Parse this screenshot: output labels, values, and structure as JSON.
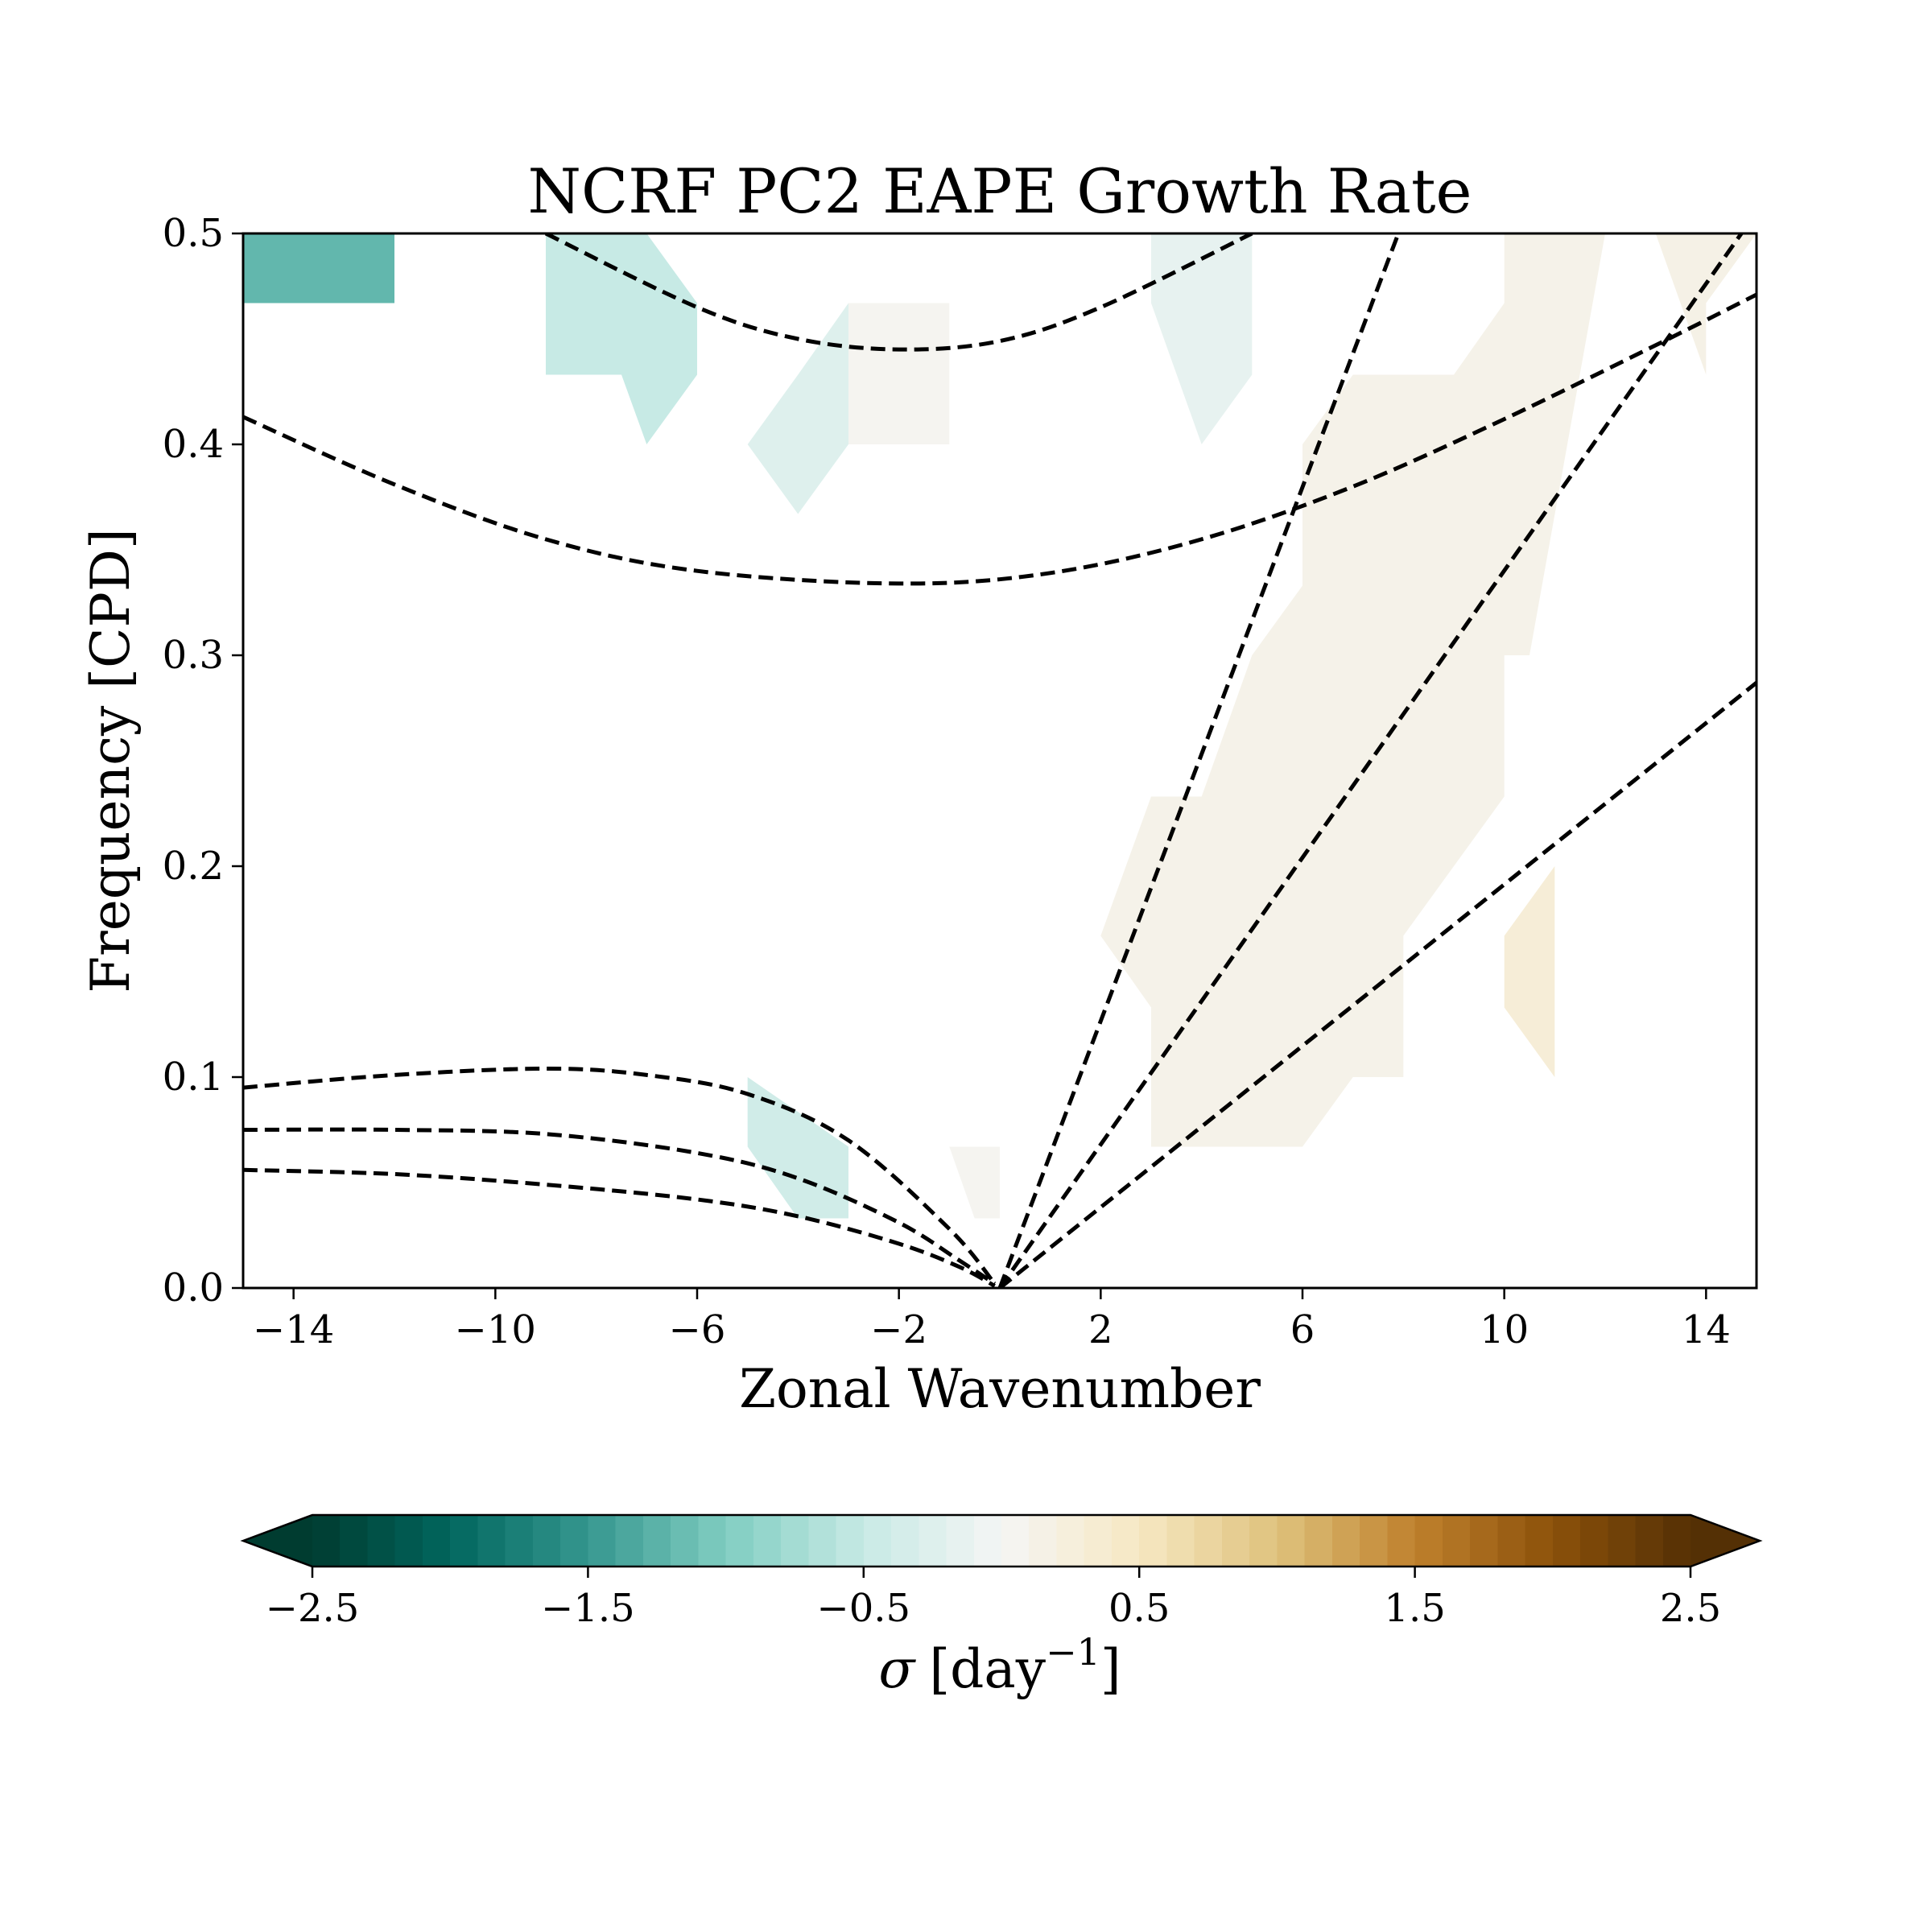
{
  "chart_data": {
    "type": "heatmap",
    "title": "NCRF PC2 EAPE Growth Rate",
    "xlabel": "Zonal Wavenumber",
    "ylabel": "Frequency [CPD]",
    "xlim": [
      -15,
      15
    ],
    "ylim": [
      0.0,
      0.5
    ],
    "xticks": [
      -14,
      -10,
      -6,
      -2,
      2,
      6,
      10,
      14
    ],
    "xtick_labels": [
      "−14",
      "−10",
      "−6",
      "−2",
      "2",
      "6",
      "10",
      "14"
    ],
    "yticks": [
      0.0,
      0.1,
      0.2,
      0.3,
      0.4,
      0.5
    ],
    "ytick_labels": [
      "0.0",
      "0.1",
      "0.2",
      "0.3",
      "0.4",
      "0.5"
    ],
    "colorbar": {
      "label_symbol": "σ",
      "label_units": "[day",
      "label_exponent": "−1",
      "label_close": "]",
      "vmin": -2.5,
      "vmax": 2.5,
      "levels": 50,
      "extend": "both",
      "ticks": [
        -2.5,
        -1.5,
        -0.5,
        0.5,
        1.5,
        2.5
      ],
      "tick_labels": [
        "−2.5",
        "−1.5",
        "−0.5",
        "0.5",
        "1.5",
        "2.5"
      ],
      "colormap": "BrBG_r",
      "stops": [
        "#003c30",
        "#01665e",
        "#35978f",
        "#80cdc1",
        "#c7eae5",
        "#f5f5f5",
        "#f6e8c3",
        "#dfc27d",
        "#bf812d",
        "#8c510a",
        "#543005"
      ]
    },
    "shaded_regions": [
      {
        "value": -1.2,
        "polygon": [
          [
            -15,
            0.467
          ],
          [
            -12,
            0.467
          ],
          [
            -12,
            0.5
          ],
          [
            -15,
            0.5
          ]
        ]
      },
      {
        "value": -0.5,
        "polygon": [
          [
            -9,
            0.433
          ],
          [
            -7.5,
            0.433
          ],
          [
            -7,
            0.4
          ],
          [
            -6,
            0.433
          ],
          [
            -6,
            0.467
          ],
          [
            -7,
            0.5
          ],
          [
            -9,
            0.5
          ]
        ]
      },
      {
        "value": -0.25,
        "polygon": [
          [
            -5,
            0.4
          ],
          [
            -4,
            0.367
          ],
          [
            -3,
            0.4
          ],
          [
            -3,
            0.467
          ],
          [
            -4,
            0.433
          ]
        ]
      },
      {
        "value": 0.05,
        "polygon": [
          [
            -3,
            0.4
          ],
          [
            -1,
            0.4
          ],
          [
            -1,
            0.467
          ],
          [
            -3,
            0.467
          ]
        ]
      },
      {
        "value": -0.15,
        "polygon": [
          [
            3,
            0.467
          ],
          [
            4,
            0.4
          ],
          [
            5,
            0.433
          ],
          [
            5,
            0.5
          ],
          [
            3,
            0.5
          ]
        ]
      },
      {
        "value": -0.4,
        "polygon": [
          [
            -5,
            0.1
          ],
          [
            -3,
            0.067
          ],
          [
            -3,
            0.033
          ],
          [
            -4,
            0.033
          ],
          [
            -5,
            0.067
          ]
        ]
      },
      {
        "value": 0.05,
        "polygon": [
          [
            -1,
            0.067
          ],
          [
            0,
            0.067
          ],
          [
            0,
            0.033
          ],
          [
            -0.5,
            0.033
          ]
        ]
      },
      {
        "value": 0.12,
        "polygon": [
          [
            2,
            0.167
          ],
          [
            3,
            0.233
          ],
          [
            4,
            0.233
          ],
          [
            5,
            0.3
          ],
          [
            6,
            0.333
          ],
          [
            6,
            0.4
          ],
          [
            7,
            0.433
          ],
          [
            9,
            0.433
          ],
          [
            10,
            0.467
          ],
          [
            10,
            0.5
          ],
          [
            12,
            0.5
          ],
          [
            10.5,
            0.3
          ],
          [
            10,
            0.3
          ],
          [
            10,
            0.233
          ],
          [
            8,
            0.167
          ],
          [
            8,
            0.1
          ],
          [
            7,
            0.1
          ],
          [
            6,
            0.067
          ],
          [
            3,
            0.067
          ],
          [
            3,
            0.133
          ],
          [
            2,
            0.167
          ]
        ]
      },
      {
        "value": 0.15,
        "polygon": [
          [
            13,
            0.5
          ],
          [
            15,
            0.5
          ],
          [
            14,
            0.467
          ],
          [
            14,
            0.433
          ]
        ]
      },
      {
        "value": 0.3,
        "polygon": [
          [
            10,
            0.133
          ],
          [
            11,
            0.1
          ],
          [
            11,
            0.2
          ],
          [
            10,
            0.167
          ]
        ]
      }
    ],
    "dispersion_curves": [
      {
        "name": "kelvin-1",
        "points": [
          [
            0,
            0
          ],
          [
            7.9,
            0.5
          ]
        ]
      },
      {
        "name": "kelvin-2",
        "points": [
          [
            0,
            0
          ],
          [
            14.7,
            0.5
          ]
        ]
      },
      {
        "name": "kelvin-3",
        "points": [
          [
            0,
            0
          ],
          [
            15,
            0.287
          ]
        ]
      },
      {
        "name": "ig1-upper",
        "points": [
          [
            -9,
            0.5
          ],
          [
            -6,
            0.465
          ],
          [
            -4,
            0.45
          ],
          [
            -2,
            0.445
          ],
          [
            0,
            0.449
          ],
          [
            2,
            0.465
          ],
          [
            5,
            0.5
          ]
        ]
      },
      {
        "name": "ig1-lower",
        "points": [
          [
            -15,
            0.413
          ],
          [
            -12,
            0.381
          ],
          [
            -9,
            0.355
          ],
          [
            -6,
            0.34
          ],
          [
            -2,
            0.334
          ],
          [
            1,
            0.339
          ],
          [
            4,
            0.355
          ],
          [
            7,
            0.38
          ],
          [
            10,
            0.412
          ],
          [
            13,
            0.447
          ],
          [
            15,
            0.471
          ]
        ]
      },
      {
        "name": "er-1",
        "points": [
          [
            -15,
            0.095
          ],
          [
            -12,
            0.101
          ],
          [
            -9,
            0.104
          ],
          [
            -7,
            0.101
          ],
          [
            -5,
            0.092
          ],
          [
            -3,
            0.07
          ],
          [
            -1,
            0.028
          ],
          [
            -0.1,
            0.002
          ]
        ]
      },
      {
        "name": "er-2",
        "points": [
          [
            -15,
            0.075
          ],
          [
            -12,
            0.075
          ],
          [
            -9,
            0.073
          ],
          [
            -6,
            0.064
          ],
          [
            -4,
            0.052
          ],
          [
            -2,
            0.031
          ],
          [
            -0.8,
            0.013
          ],
          [
            -0.1,
            0.002
          ]
        ]
      },
      {
        "name": "er-3",
        "points": [
          [
            -15,
            0.056
          ],
          [
            -12,
            0.054
          ],
          [
            -9,
            0.049
          ],
          [
            -6,
            0.042
          ],
          [
            -4,
            0.034
          ],
          [
            -2,
            0.021
          ],
          [
            -0.8,
            0.01
          ],
          [
            -0.1,
            0.001
          ]
        ]
      }
    ]
  }
}
